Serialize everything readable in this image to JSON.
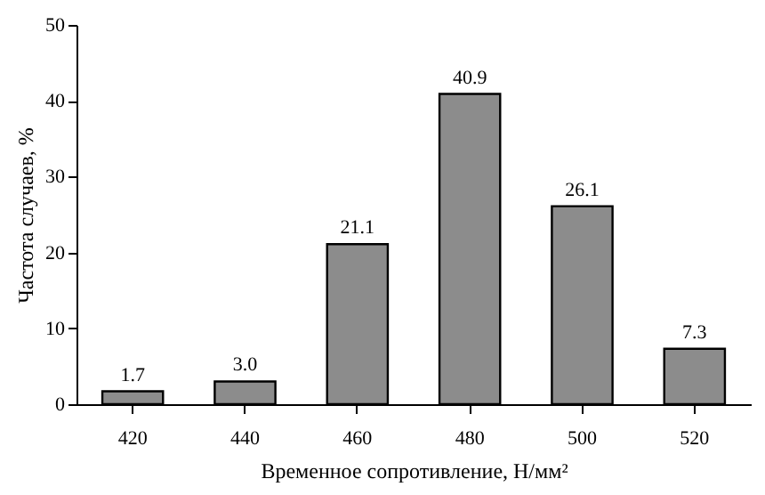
{
  "chart_data": {
    "type": "bar",
    "xlabel": "Временное сопротивление, Н/мм²",
    "ylabel": "Частота случаев, %",
    "categories": [
      "420",
      "440",
      "460",
      "480",
      "500",
      "520"
    ],
    "values": [
      1.7,
      3.0,
      21.1,
      40.9,
      26.1,
      7.3
    ],
    "value_labels": [
      "1.7",
      "3.0",
      "21.1",
      "40.9",
      "26.1",
      "7.3"
    ],
    "color": "#8c8c8c",
    "ylim": [
      0,
      50
    ],
    "yticks": [
      0,
      10,
      20,
      30,
      40,
      50
    ],
    "grid": false
  }
}
